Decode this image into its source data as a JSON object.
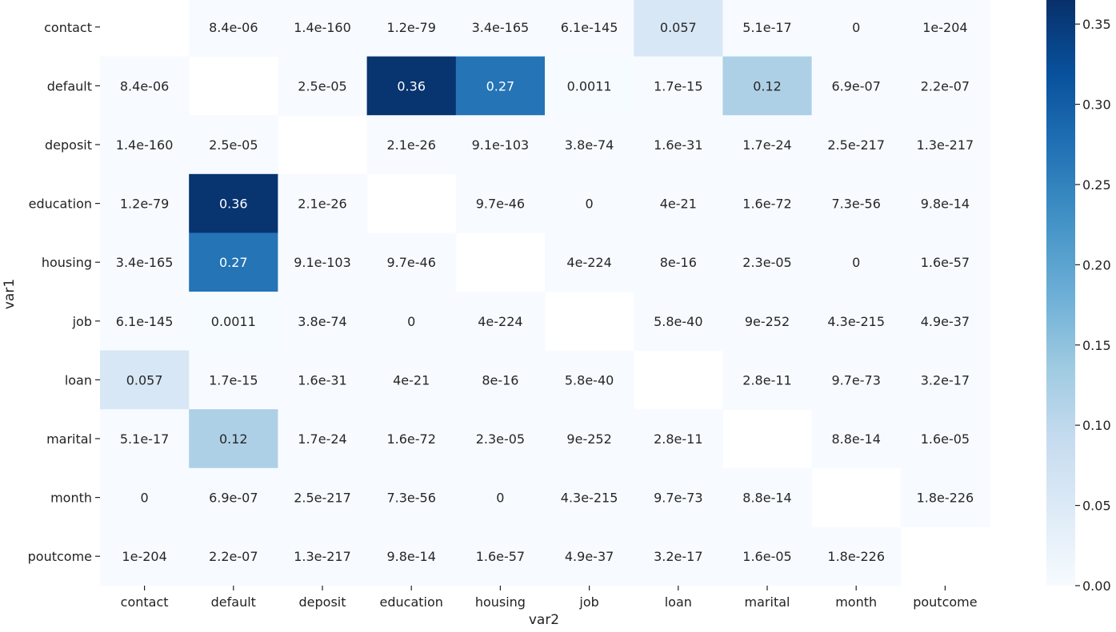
{
  "chart_data": {
    "type": "heatmap",
    "xlabel": "var2",
    "ylabel": "var1",
    "x_categories": [
      "contact",
      "default",
      "deposit",
      "education",
      "housing",
      "job",
      "loan",
      "marital",
      "month",
      "poutcome"
    ],
    "y_categories": [
      "contact",
      "default",
      "deposit",
      "education",
      "housing",
      "job",
      "loan",
      "marital",
      "month",
      "poutcome"
    ],
    "cell_labels": [
      [
        "",
        "8.4e-06",
        "1.4e-160",
        "1.2e-79",
        "3.4e-165",
        "6.1e-145",
        "0.057",
        "5.1e-17",
        "0",
        "1e-204"
      ],
      [
        "8.4e-06",
        "",
        "2.5e-05",
        "0.36",
        "0.27",
        "0.0011",
        "1.7e-15",
        "0.12",
        "6.9e-07",
        "2.2e-07"
      ],
      [
        "1.4e-160",
        "2.5e-05",
        "",
        "2.1e-26",
        "9.1e-103",
        "3.8e-74",
        "1.6e-31",
        "1.7e-24",
        "2.5e-217",
        "1.3e-217"
      ],
      [
        "1.2e-79",
        "0.36",
        "2.1e-26",
        "",
        "9.7e-46",
        "0",
        "4e-21",
        "1.6e-72",
        "7.3e-56",
        "9.8e-14"
      ],
      [
        "3.4e-165",
        "0.27",
        "9.1e-103",
        "9.7e-46",
        "",
        "4e-224",
        "8e-16",
        "2.3e-05",
        "0",
        "1.6e-57"
      ],
      [
        "6.1e-145",
        "0.0011",
        "3.8e-74",
        "0",
        "4e-224",
        "",
        "5.8e-40",
        "9e-252",
        "4.3e-215",
        "4.9e-37"
      ],
      [
        "0.057",
        "1.7e-15",
        "1.6e-31",
        "4e-21",
        "8e-16",
        "5.8e-40",
        "",
        "2.8e-11",
        "9.7e-73",
        "3.2e-17"
      ],
      [
        "5.1e-17",
        "0.12",
        "1.7e-24",
        "1.6e-72",
        "2.3e-05",
        "9e-252",
        "2.8e-11",
        "",
        "8.8e-14",
        "1.6e-05"
      ],
      [
        "0",
        "6.9e-07",
        "2.5e-217",
        "7.3e-56",
        "0",
        "4.3e-215",
        "9.7e-73",
        "8.8e-14",
        "",
        "1.8e-226"
      ],
      [
        "1e-204",
        "2.2e-07",
        "1.3e-217",
        "9.8e-14",
        "1.6e-57",
        "4.9e-37",
        "3.2e-17",
        "1.6e-05",
        "1.8e-226",
        ""
      ]
    ],
    "colorbar": {
      "min": 0,
      "max": 0.365,
      "ticks": [
        0.0,
        0.05,
        0.1,
        0.15,
        0.2,
        0.25,
        0.3,
        0.35
      ],
      "tick_labels": [
        "0.00",
        "0.05",
        "0.10",
        "0.15",
        "0.20",
        "0.25",
        "0.30",
        "0.35"
      ],
      "colormap": "Blues",
      "colormap_stops": [
        "#f7fbff",
        "#deebf7",
        "#c6dbef",
        "#9ecae1",
        "#6baed6",
        "#4292c6",
        "#2171b5",
        "#08519c",
        "#08306b"
      ]
    },
    "grid": false,
    "legend": "colorbar-right"
  }
}
